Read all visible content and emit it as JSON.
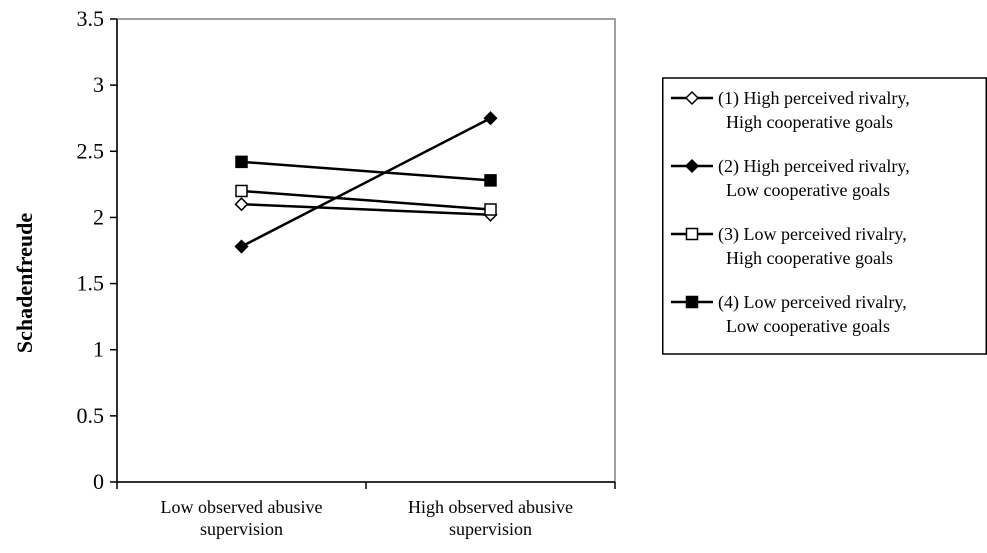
{
  "chart_data": {
    "type": "line",
    "ylabel": "Schadenfreude",
    "ylim": [
      0,
      3.5
    ],
    "yticks": [
      0,
      0.5,
      1,
      1.5,
      2,
      2.5,
      3,
      3.5
    ],
    "ytick_labels": [
      "0",
      "0.5",
      "1",
      "1.5",
      "2",
      "2.5",
      "3",
      "3.5"
    ],
    "categories": [
      [
        "Low observed abusive",
        "supervision"
      ],
      [
        "High observed abusive",
        "supervision"
      ]
    ],
    "grid": false,
    "legend_position": "right",
    "series": [
      {
        "name": [
          "(1) High perceived rivalry,",
          "High cooperative goals"
        ],
        "marker": "diamond-open",
        "values": [
          2.1,
          2.02
        ]
      },
      {
        "name": [
          "(2) High perceived rivalry,",
          "Low cooperative goals"
        ],
        "marker": "diamond-filled",
        "values": [
          1.78,
          2.75
        ]
      },
      {
        "name": [
          "(3) Low perceived rivalry,",
          "High cooperative goals"
        ],
        "marker": "square-open",
        "values": [
          2.2,
          2.06
        ]
      },
      {
        "name": [
          "(4) Low perceived rivalry,",
          "Low cooperative goals"
        ],
        "marker": "square-filled",
        "values": [
          2.42,
          2.28
        ]
      }
    ],
    "colors": {
      "line": "#000000",
      "plot_border": "#808080",
      "legend_border": "#000000"
    }
  }
}
